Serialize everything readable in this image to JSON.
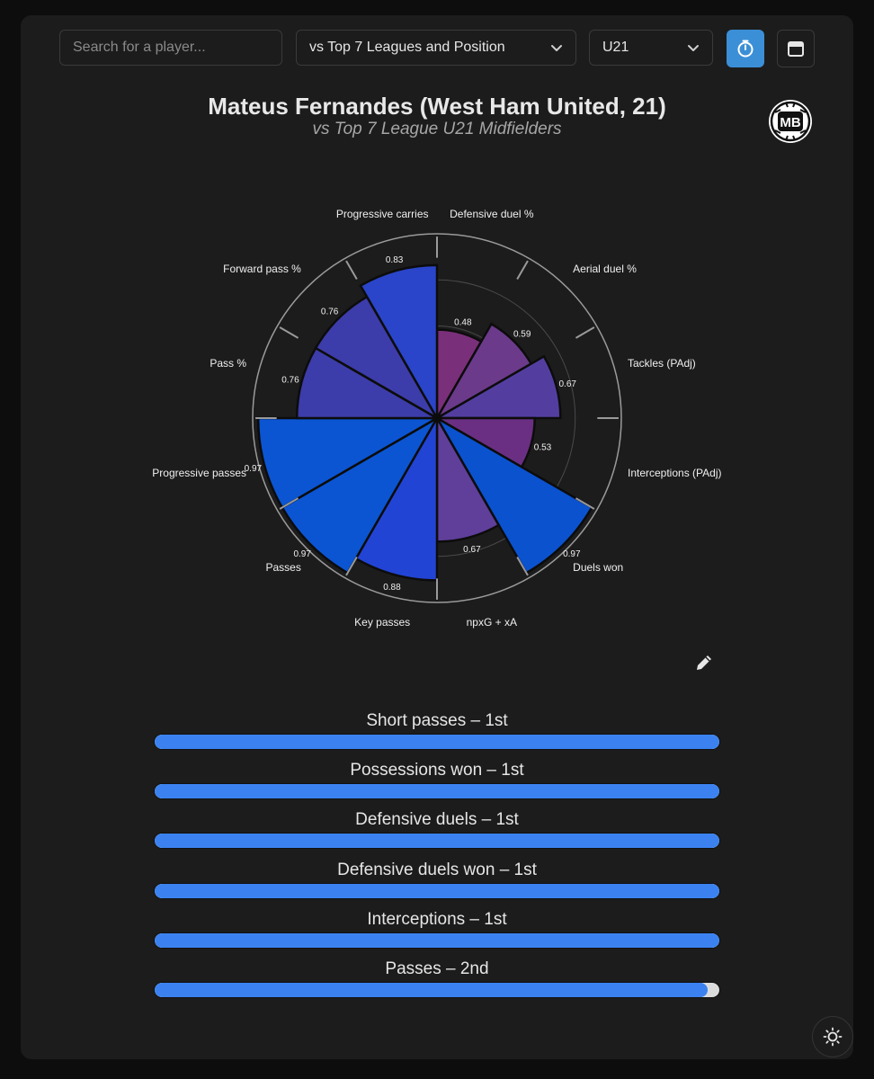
{
  "search": {
    "placeholder": "Search for a player..."
  },
  "comparison_select": {
    "value": "vs Top 7 Leagues and Position"
  },
  "age_select": {
    "value": "U21"
  },
  "buttons": {
    "timer_icon": "stopwatch-icon",
    "calendar_icon": "calendar-icon",
    "theme_icon": "sun-icon",
    "edit_icon": "pencil-icon"
  },
  "header": {
    "title": "Mateus Fernandes (West Ham United, 21)",
    "subtitle": "vs Top 7 League U21 Midfielders",
    "logo_text": "MB"
  },
  "chart_data": {
    "type": "polar-bar",
    "title": "",
    "range": [
      0,
      1
    ],
    "categories": [
      "Defensive duel %",
      "Aerial duel %",
      "Tackles (PAdj)",
      "Interceptions (PAdj)",
      "Duels won",
      "npxG + xA",
      "Key passes",
      "Passes",
      "Progressive passes",
      "Pass %",
      "Forward pass %",
      "Progressive carries"
    ],
    "values": [
      0.48,
      0.59,
      0.67,
      0.53,
      0.97,
      0.67,
      0.88,
      0.97,
      0.97,
      0.76,
      0.76,
      0.83
    ],
    "value_labels": [
      "0.48",
      "0.59",
      "0.67",
      "0.53",
      "0.97",
      "0.67",
      "0.88",
      "0.97",
      "0.97",
      "0.76",
      "0.76",
      "0.83"
    ],
    "colors": [
      "#7a2f7a",
      "#6b3a8a",
      "#533ea0",
      "#6a2f82",
      "#0b52cf",
      "#5f3f9a",
      "#2244d4",
      "#0b55d3",
      "#0b55d3",
      "#3c3caa",
      "#3c3caa",
      "#2a45c9"
    ]
  },
  "rankings": [
    {
      "label": "Short passes – 1st",
      "fraction": 1.0
    },
    {
      "label": "Possessions won – 1st",
      "fraction": 1.0
    },
    {
      "label": "Defensive duels – 1st",
      "fraction": 1.0
    },
    {
      "label": "Defensive duels won – 1st",
      "fraction": 1.0
    },
    {
      "label": "Interceptions – 1st",
      "fraction": 1.0
    },
    {
      "label": "Passes – 2nd",
      "fraction": 0.98
    }
  ]
}
